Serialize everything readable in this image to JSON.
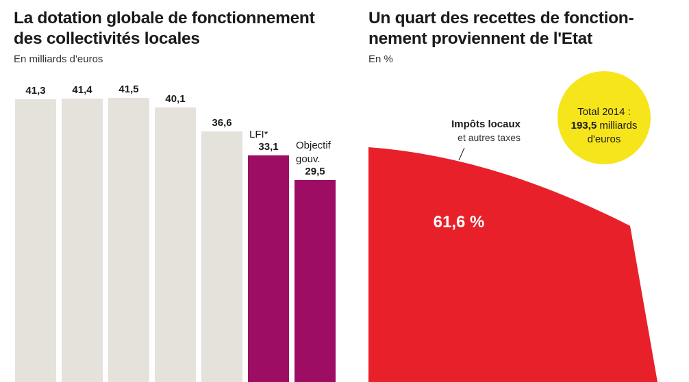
{
  "chart_data": [
    {
      "type": "bar",
      "title_lines": [
        "La dotation globale de fonctionnement",
        "des collectivités locales"
      ],
      "subtitle": "En milliards d'euros",
      "categories": [
        "",
        "",
        "",
        "",
        "",
        "LFI*",
        "Objectif gouv."
      ],
      "annotations": [
        "",
        "",
        "",
        "",
        "",
        "LFI*",
        "Objectif\ngouv."
      ],
      "values": [
        41.3,
        41.4,
        41.5,
        40.1,
        36.6,
        33.1,
        29.5
      ],
      "value_labels": [
        "41,3",
        "41,4",
        "41,5",
        "40,1",
        "36,6",
        "33,1",
        "29,5"
      ],
      "colors": [
        "#e5e2dc",
        "#e5e2dc",
        "#e5e2dc",
        "#e5e2dc",
        "#e5e2dc",
        "#9c0d63",
        "#9c0d63"
      ],
      "grid": false,
      "legend": "none"
    },
    {
      "type": "pie",
      "title_lines": [
        "Un quart des recettes de fonction-",
        "nement proviennent de l'Etat"
      ],
      "subtitle": "En %",
      "slices": [
        {
          "label": "Impôts locaux",
          "sublabel": "et autres taxes",
          "value": 61.6,
          "value_label": "61,6 %",
          "color": "#e8202a"
        }
      ],
      "total": {
        "line1": "Total 2014 :",
        "value": "193,5",
        "line2": " milliards",
        "line3": "d'euros",
        "color": "#f7e51b"
      }
    }
  ]
}
